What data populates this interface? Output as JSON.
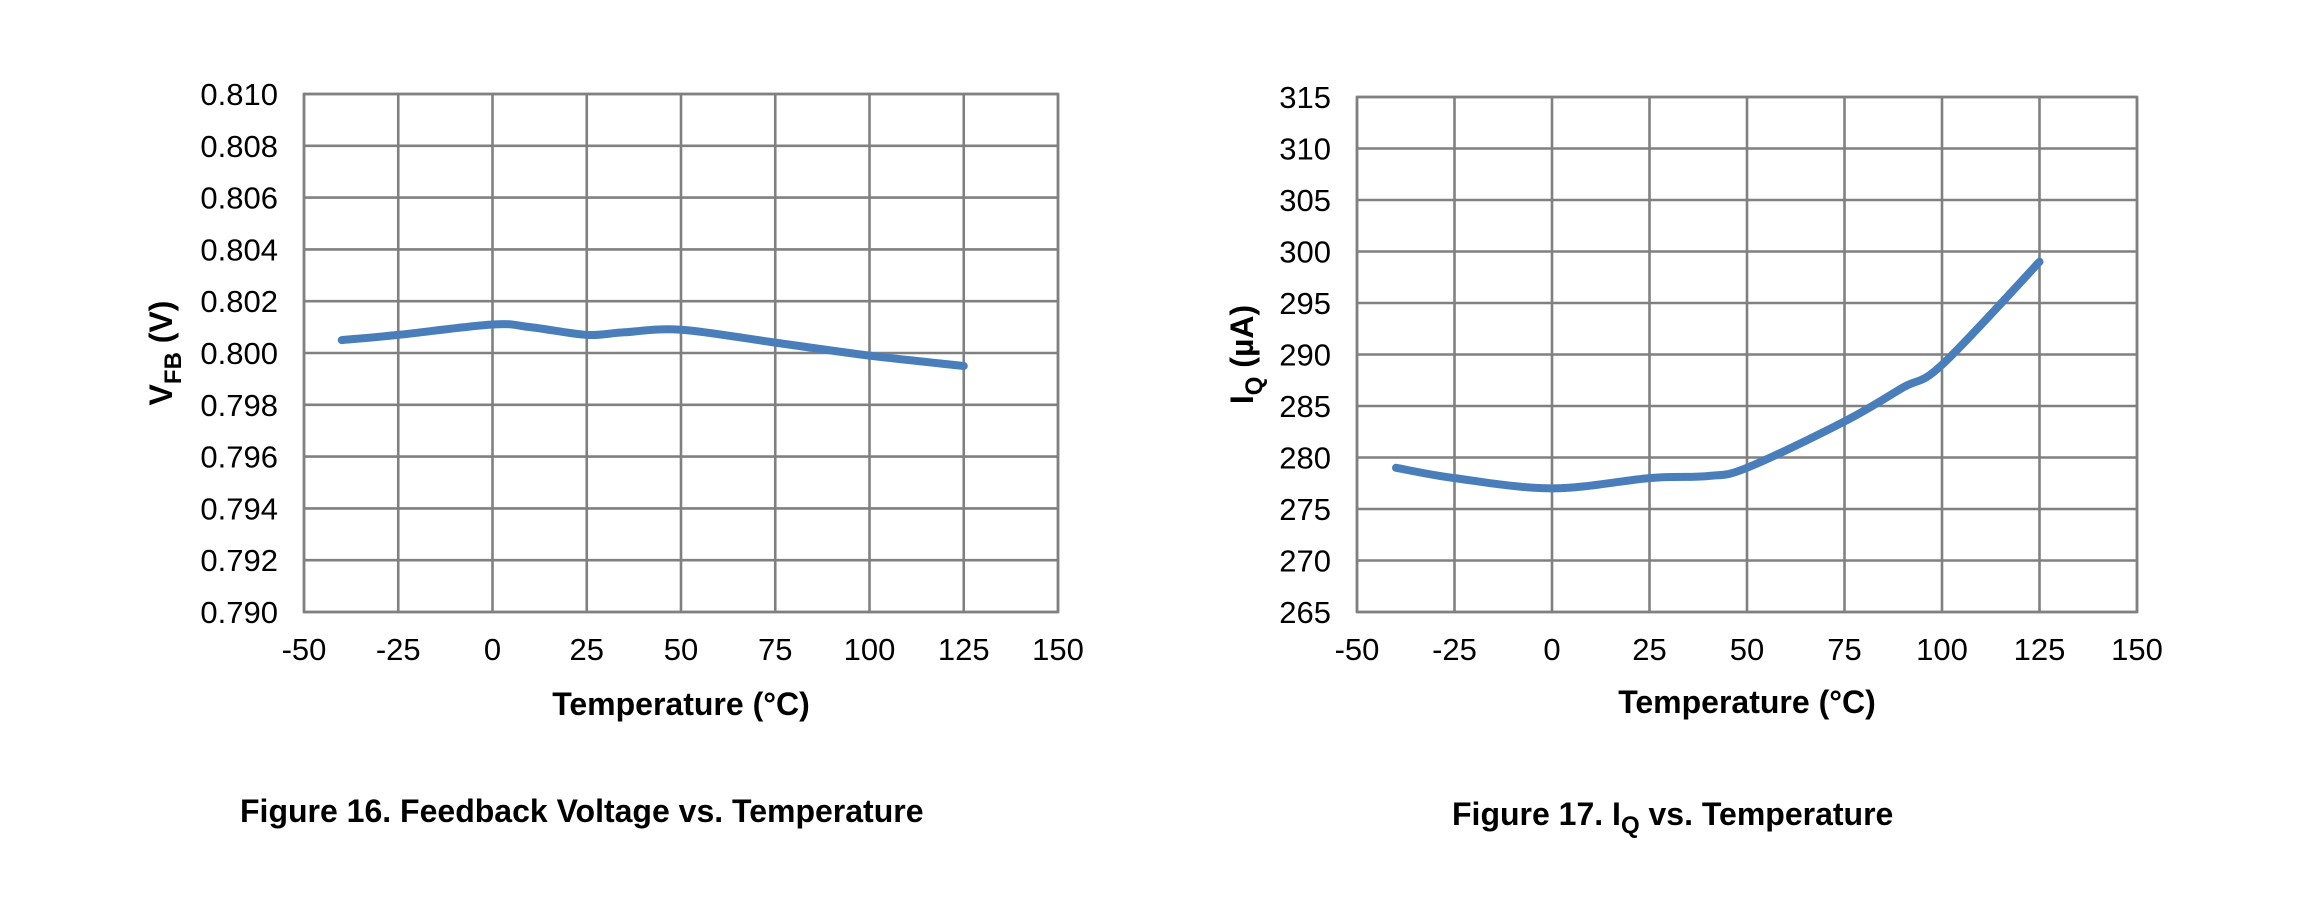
{
  "line_color": "#4a7ebb",
  "chart_data": [
    {
      "type": "line",
      "caption": "Figure 16. Feedback Voltage vs. Temperature",
      "xlabel": "Temperature (°C)",
      "ylabel": "V",
      "ylabel_sub": "FB",
      "ylabel_suffix": " (V)",
      "xlim": [
        -50,
        150
      ],
      "ylim": [
        0.79,
        0.81
      ],
      "x_ticks": [
        "-50",
        "-25",
        "0",
        "25",
        "50",
        "75",
        "100",
        "125",
        "150"
      ],
      "y_ticks": [
        "0.790",
        "0.792",
        "0.794",
        "0.796",
        "0.798",
        "0.800",
        "0.802",
        "0.804",
        "0.806",
        "0.808",
        "0.810"
      ],
      "grid": true,
      "series": [
        {
          "x": [
            -40,
            -25,
            0,
            10,
            25,
            35,
            50,
            75,
            100,
            125
          ],
          "values": [
            0.8005,
            0.8007,
            0.8011,
            0.801,
            0.8007,
            0.8008,
            0.8009,
            0.8004,
            0.7999,
            0.7995
          ]
        }
      ]
    },
    {
      "type": "line",
      "caption_main": "Figure 17. I",
      "caption_sub": "Q",
      "caption_rest": " vs. Temperature",
      "xlabel": "Temperature (°C)",
      "ylabel": "I",
      "ylabel_sub": "Q",
      "ylabel_suffix": " (µA)",
      "xlim": [
        -50,
        150
      ],
      "ylim": [
        265,
        315
      ],
      "x_ticks": [
        "-50",
        "-25",
        "0",
        "25",
        "50",
        "75",
        "100",
        "125",
        "150"
      ],
      "y_ticks": [
        "265",
        "270",
        "275",
        "280",
        "285",
        "290",
        "295",
        "300",
        "305",
        "310",
        "315"
      ],
      "grid": true,
      "series": [
        {
          "x": [
            -40,
            -25,
            0,
            25,
            40,
            50,
            75,
            90,
            100,
            125
          ],
          "values": [
            279,
            278,
            277,
            278,
            278.2,
            279,
            283.5,
            286.8,
            289,
            299
          ]
        }
      ]
    }
  ]
}
